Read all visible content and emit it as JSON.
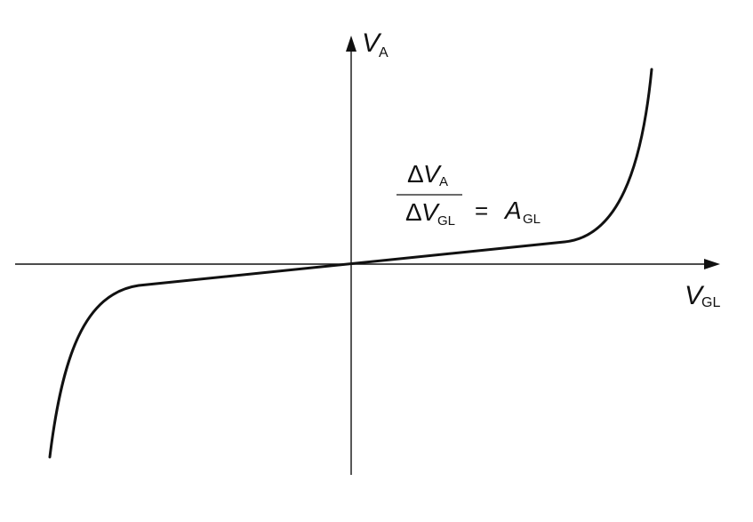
{
  "axes": {
    "y_label": "V",
    "y_label_sub": "A",
    "x_label": "V",
    "x_label_sub": "GL"
  },
  "equation": {
    "numerator_delta": "Δ",
    "numerator_var": "V",
    "numerator_sub": "A",
    "denominator_delta": "Δ",
    "denominator_var": "V",
    "denominator_sub": "GL",
    "equals": "=",
    "result_var": "A",
    "result_sub": "GL"
  },
  "colors": {
    "ink": "#111111",
    "background": "#ffffff"
  }
}
